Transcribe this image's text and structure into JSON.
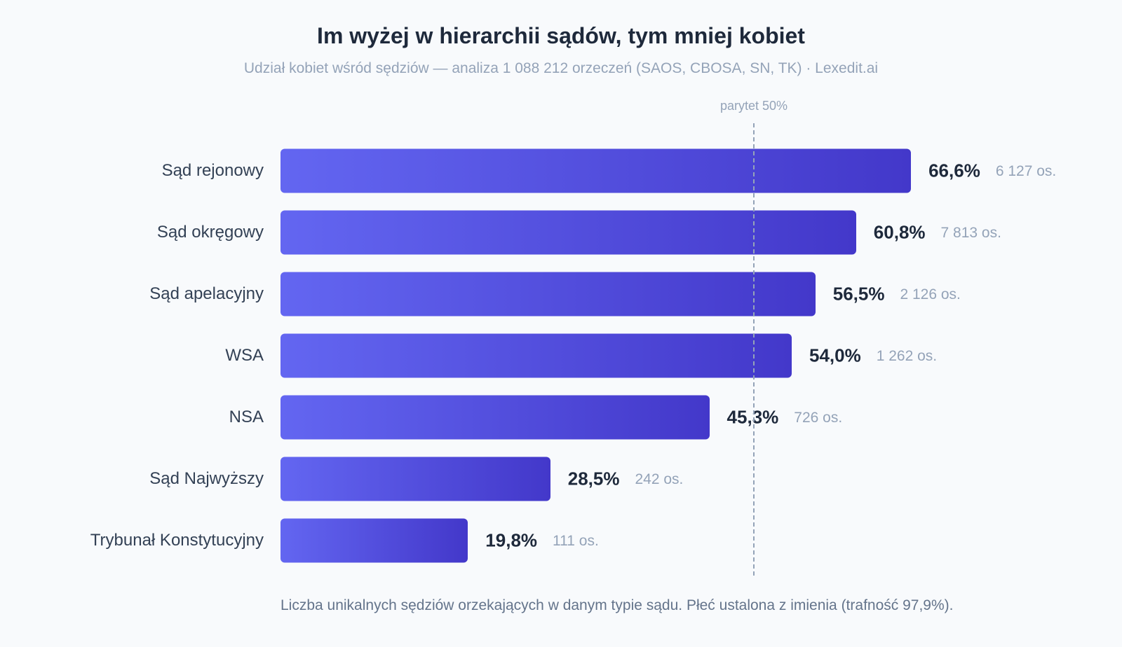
{
  "title": "Im wyżej w hierarchii sądów, tym mniej kobiet",
  "subtitle": "Udział kobiet wśród sędziów — analiza 1 088 212 orzeczeń (SAOS, CBOSA, SN, TK) · Lexedit.ai",
  "parity_label": "parytet 50%",
  "footnote": "Liczba unikalnych sędziów orzekających w danym typie sądu. Płeć ustalona z imienia (trafność 97,9%).",
  "colors": {
    "bar_start": "#6366f1",
    "bar_end": "#4338ca",
    "value_text": "#1e293b",
    "muted_text": "#94a3b8"
  },
  "chart_data": {
    "type": "bar",
    "orientation": "horizontal",
    "categories": [
      "Sąd rejonowy",
      "Sąd okręgowy",
      "Sąd apelacyjny",
      "WSA",
      "NSA",
      "Sąd Najwyższy",
      "Trybunał Konstytucyjny"
    ],
    "values": [
      66.6,
      60.8,
      56.5,
      54.0,
      45.3,
      28.5,
      19.8
    ],
    "value_labels": [
      "66,6%",
      "60,8%",
      "56,5%",
      "54,0%",
      "45,3%",
      "28,5%",
      "19,8%"
    ],
    "count_labels": [
      "6 127 os.",
      "7 813 os.",
      "2 126 os.",
      "1 262 os.",
      "726 os.",
      "242 os.",
      "111 os."
    ],
    "reference_line": 50,
    "xlim": [
      0,
      100
    ],
    "grid": false,
    "legend": "none"
  }
}
